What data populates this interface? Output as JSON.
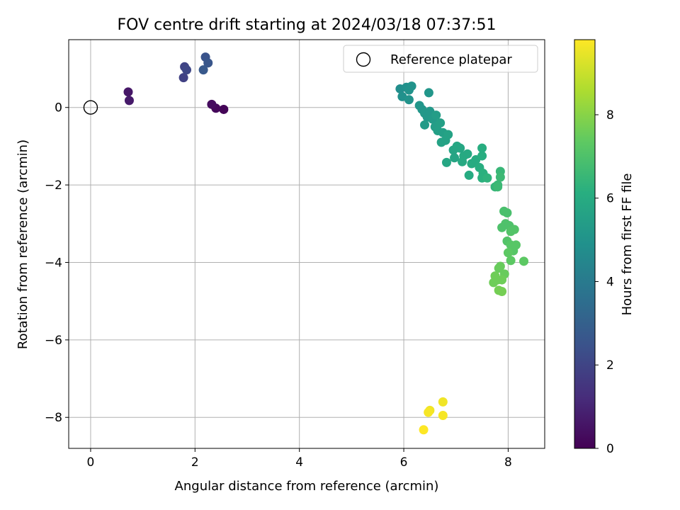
{
  "chart_data": {
    "type": "scatter",
    "title": "FOV centre drift starting at 2024/03/18 07:37:51",
    "xlabel": "Angular distance from reference (arcmin)",
    "ylabel": "Rotation from reference (arcmin)",
    "xlim": [
      -0.42,
      8.7
    ],
    "ylim": [
      -8.8,
      1.75
    ],
    "xticks": [
      0,
      2,
      4,
      6,
      8
    ],
    "yticks": [
      0,
      -2,
      -4,
      -6,
      -8
    ],
    "xtick_labels": [
      "0",
      "2",
      "4",
      "6",
      "8"
    ],
    "ytick_labels": [
      "0",
      "−2",
      "−4",
      "−6",
      "−8"
    ],
    "grid": true,
    "legend": {
      "label": "Reference platepar",
      "placement": "top-right"
    },
    "reference_point": {
      "x": 0,
      "y": 0
    },
    "colorbar": {
      "label": "Hours from first FF file",
      "colormap": "viridis",
      "range": [
        0,
        9.8
      ],
      "ticks": [
        0,
        2,
        4,
        6,
        8
      ],
      "tick_labels": [
        "0",
        "2",
        "4",
        "6",
        "8"
      ]
    },
    "points": [
      {
        "x": 2.55,
        "y": -0.05,
        "c": 0.1
      },
      {
        "x": 2.4,
        "y": -0.02,
        "c": 0.2
      },
      {
        "x": 2.32,
        "y": 0.08,
        "c": 0.3
      },
      {
        "x": 0.72,
        "y": 0.4,
        "c": 0.6
      },
      {
        "x": 0.74,
        "y": 0.18,
        "c": 0.7
      },
      {
        "x": 1.78,
        "y": 0.77,
        "c": 1.9
      },
      {
        "x": 1.8,
        "y": 1.05,
        "c": 2.0
      },
      {
        "x": 1.84,
        "y": 0.97,
        "c": 2.1
      },
      {
        "x": 2.2,
        "y": 1.3,
        "c": 2.5
      },
      {
        "x": 2.25,
        "y": 1.15,
        "c": 2.6
      },
      {
        "x": 2.16,
        "y": 0.97,
        "c": 2.7
      },
      {
        "x": 5.93,
        "y": 0.48,
        "c": 4.8
      },
      {
        "x": 5.97,
        "y": 0.28,
        "c": 4.9
      },
      {
        "x": 6.05,
        "y": 0.52,
        "c": 4.9
      },
      {
        "x": 6.1,
        "y": 0.45,
        "c": 5.0
      },
      {
        "x": 6.15,
        "y": 0.55,
        "c": 5.0
      },
      {
        "x": 6.1,
        "y": 0.2,
        "c": 5.0
      },
      {
        "x": 6.3,
        "y": 0.05,
        "c": 5.1
      },
      {
        "x": 6.35,
        "y": -0.05,
        "c": 5.1
      },
      {
        "x": 6.4,
        "y": -0.15,
        "c": 5.2
      },
      {
        "x": 6.45,
        "y": -0.25,
        "c": 5.2
      },
      {
        "x": 6.5,
        "y": -0.1,
        "c": 5.2
      },
      {
        "x": 6.55,
        "y": -0.3,
        "c": 5.3
      },
      {
        "x": 6.48,
        "y": 0.38,
        "c": 5.1
      },
      {
        "x": 6.4,
        "y": -0.45,
        "c": 5.3
      },
      {
        "x": 6.6,
        "y": -0.5,
        "c": 5.4
      },
      {
        "x": 6.62,
        "y": -0.2,
        "c": 5.4
      },
      {
        "x": 6.7,
        "y": -0.4,
        "c": 5.5
      },
      {
        "x": 6.65,
        "y": -0.6,
        "c": 5.5
      },
      {
        "x": 6.75,
        "y": -0.65,
        "c": 5.5
      },
      {
        "x": 6.8,
        "y": -0.85,
        "c": 5.6
      },
      {
        "x": 6.72,
        "y": -0.9,
        "c": 5.6
      },
      {
        "x": 6.85,
        "y": -0.7,
        "c": 5.6
      },
      {
        "x": 6.95,
        "y": -1.1,
        "c": 5.7
      },
      {
        "x": 6.97,
        "y": -1.3,
        "c": 5.7
      },
      {
        "x": 7.02,
        "y": -1.0,
        "c": 5.8
      },
      {
        "x": 6.82,
        "y": -1.42,
        "c": 5.8
      },
      {
        "x": 7.08,
        "y": -1.05,
        "c": 5.8
      },
      {
        "x": 7.15,
        "y": -1.25,
        "c": 5.9
      },
      {
        "x": 7.12,
        "y": -1.4,
        "c": 5.9
      },
      {
        "x": 7.22,
        "y": -1.2,
        "c": 5.9
      },
      {
        "x": 7.3,
        "y": -1.45,
        "c": 6.0
      },
      {
        "x": 7.25,
        "y": -1.75,
        "c": 6.0
      },
      {
        "x": 7.38,
        "y": -1.35,
        "c": 6.0
      },
      {
        "x": 7.45,
        "y": -1.55,
        "c": 6.1
      },
      {
        "x": 7.5,
        "y": -1.05,
        "c": 6.1
      },
      {
        "x": 7.5,
        "y": -1.25,
        "c": 6.1
      },
      {
        "x": 7.52,
        "y": -1.7,
        "c": 6.2
      },
      {
        "x": 7.5,
        "y": -1.82,
        "c": 6.2
      },
      {
        "x": 7.6,
        "y": -1.82,
        "c": 6.3
      },
      {
        "x": 7.75,
        "y": -2.05,
        "c": 6.4
      },
      {
        "x": 7.8,
        "y": -2.0,
        "c": 6.5
      },
      {
        "x": 7.85,
        "y": -1.65,
        "c": 6.5
      },
      {
        "x": 7.85,
        "y": -1.8,
        "c": 6.6
      },
      {
        "x": 7.8,
        "y": -2.05,
        "c": 6.6
      },
      {
        "x": 7.92,
        "y": -2.68,
        "c": 6.9
      },
      {
        "x": 7.98,
        "y": -2.72,
        "c": 6.9
      },
      {
        "x": 7.95,
        "y": -3.0,
        "c": 7.0
      },
      {
        "x": 7.88,
        "y": -3.1,
        "c": 7.0
      },
      {
        "x": 8.02,
        "y": -3.05,
        "c": 7.0
      },
      {
        "x": 8.05,
        "y": -3.2,
        "c": 7.1
      },
      {
        "x": 8.12,
        "y": -3.15,
        "c": 7.1
      },
      {
        "x": 7.98,
        "y": -3.45,
        "c": 7.1
      },
      {
        "x": 8.05,
        "y": -3.55,
        "c": 7.2
      },
      {
        "x": 8.1,
        "y": -3.7,
        "c": 7.2
      },
      {
        "x": 8.15,
        "y": -3.55,
        "c": 7.2
      },
      {
        "x": 8.0,
        "y": -3.75,
        "c": 7.3
      },
      {
        "x": 8.05,
        "y": -3.95,
        "c": 7.3
      },
      {
        "x": 8.3,
        "y": -3.97,
        "c": 7.3
      },
      {
        "x": 7.85,
        "y": -4.1,
        "c": 7.5
      },
      {
        "x": 7.82,
        "y": -4.15,
        "c": 7.5
      },
      {
        "x": 7.93,
        "y": -4.3,
        "c": 7.5
      },
      {
        "x": 7.75,
        "y": -4.35,
        "c": 7.6
      },
      {
        "x": 7.8,
        "y": -4.45,
        "c": 7.6
      },
      {
        "x": 7.72,
        "y": -4.52,
        "c": 7.6
      },
      {
        "x": 7.88,
        "y": -4.45,
        "c": 7.6
      },
      {
        "x": 7.82,
        "y": -4.72,
        "c": 7.7
      },
      {
        "x": 7.88,
        "y": -4.75,
        "c": 7.7
      },
      {
        "x": 6.75,
        "y": -7.6,
        "c": 9.6
      },
      {
        "x": 6.5,
        "y": -7.82,
        "c": 9.6
      },
      {
        "x": 6.47,
        "y": -7.87,
        "c": 9.7
      },
      {
        "x": 6.75,
        "y": -7.95,
        "c": 9.7
      },
      {
        "x": 6.38,
        "y": -8.32,
        "c": 9.8
      }
    ]
  }
}
